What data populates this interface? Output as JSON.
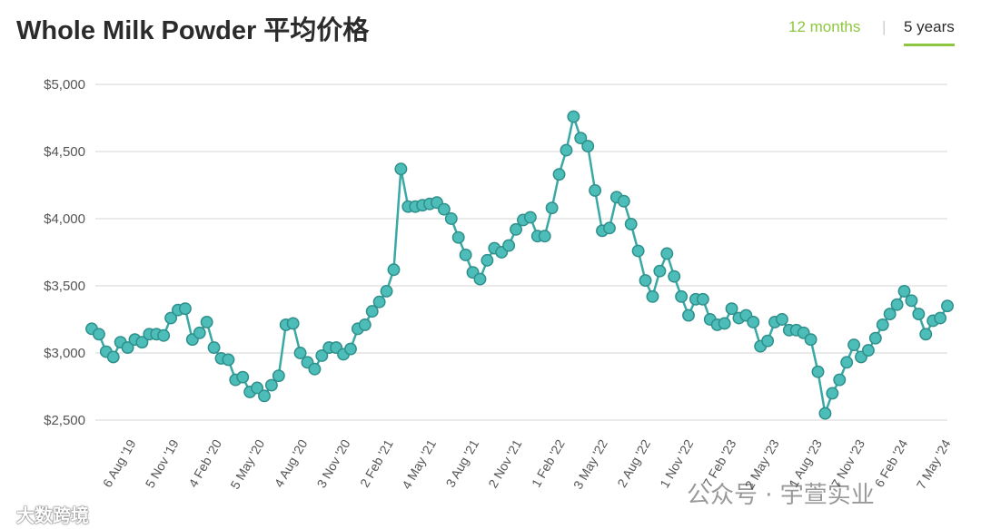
{
  "title": "Whole Milk Powder 平均价格",
  "toggles": {
    "months_label": "12 months",
    "separator": "|",
    "years_label": "5 years"
  },
  "watermarks": {
    "bottom_left": "大数跨境",
    "bottom_right": "公众号 · 宇萱实业"
  },
  "colors": {
    "line": "#3aa9a5",
    "marker_fill": "#4cbdb8",
    "marker_stroke": "#2f8f8b",
    "grid": "#e3e3e3",
    "accent": "#8dc63f"
  },
  "chart_data": {
    "type": "line",
    "title": "Whole Milk Powder 平均价格",
    "xlabel": "",
    "ylabel": "",
    "ylim": [
      2500,
      5000
    ],
    "y_ticks": [
      2500,
      3000,
      3500,
      4000,
      4500,
      5000
    ],
    "y_tick_labels": [
      "$2,500",
      "$3,000",
      "$3,500",
      "$4,000",
      "$4,500",
      "$5,000"
    ],
    "x_tick_labels": [
      "6 Aug '19",
      "5 Nov '19",
      "4 Feb '20",
      "5 May '20",
      "4 Aug '20",
      "3 Nov '20",
      "2 Feb '21",
      "4 May '21",
      "3 Aug '21",
      "2 Nov '21",
      "1 Feb '22",
      "3 May '22",
      "2 Aug '22",
      "1 Nov '22",
      "7 Feb '23",
      "2 May '23",
      "1 Aug '23",
      "7 Nov '23",
      "6 Feb '24",
      "7 May '24"
    ],
    "grid": true,
    "legend": "none",
    "series": [
      {
        "values": [
          3180,
          3140,
          3010,
          2970,
          3080,
          3040,
          3100,
          3080,
          3140,
          3140,
          3130,
          3260,
          3320,
          3330,
          3100,
          3150,
          3230,
          3040,
          2960,
          2950,
          2800,
          2820,
          2710,
          2740,
          2680,
          2760,
          2830,
          3210,
          3220,
          3000,
          2930,
          2880,
          2980,
          3040,
          3040,
          2990,
          3030,
          3180,
          3210,
          3310,
          3380,
          3460,
          3620,
          4370,
          4090,
          4090,
          4100,
          4110,
          4120,
          4070,
          4000,
          3860,
          3730,
          3600,
          3550,
          3690,
          3780,
          3750,
          3800,
          3920,
          3990,
          4010,
          3870,
          3870,
          4080,
          4330,
          4510,
          4760,
          4600,
          4540,
          4210,
          3910,
          3930,
          4160,
          4130,
          3960,
          3760,
          3540,
          3420,
          3610,
          3740,
          3570,
          3420,
          3280,
          3400,
          3400,
          3250,
          3210,
          3220,
          3330,
          3260,
          3280,
          3230,
          3050,
          3090,
          3230,
          3250,
          3170,
          3170,
          3150,
          3100,
          2860,
          2550,
          2700,
          2800,
          2930,
          3060,
          2970,
          3020,
          3110,
          3210,
          3290,
          3360,
          3460,
          3390,
          3290,
          3140,
          3240,
          3260,
          3350
        ]
      }
    ]
  }
}
